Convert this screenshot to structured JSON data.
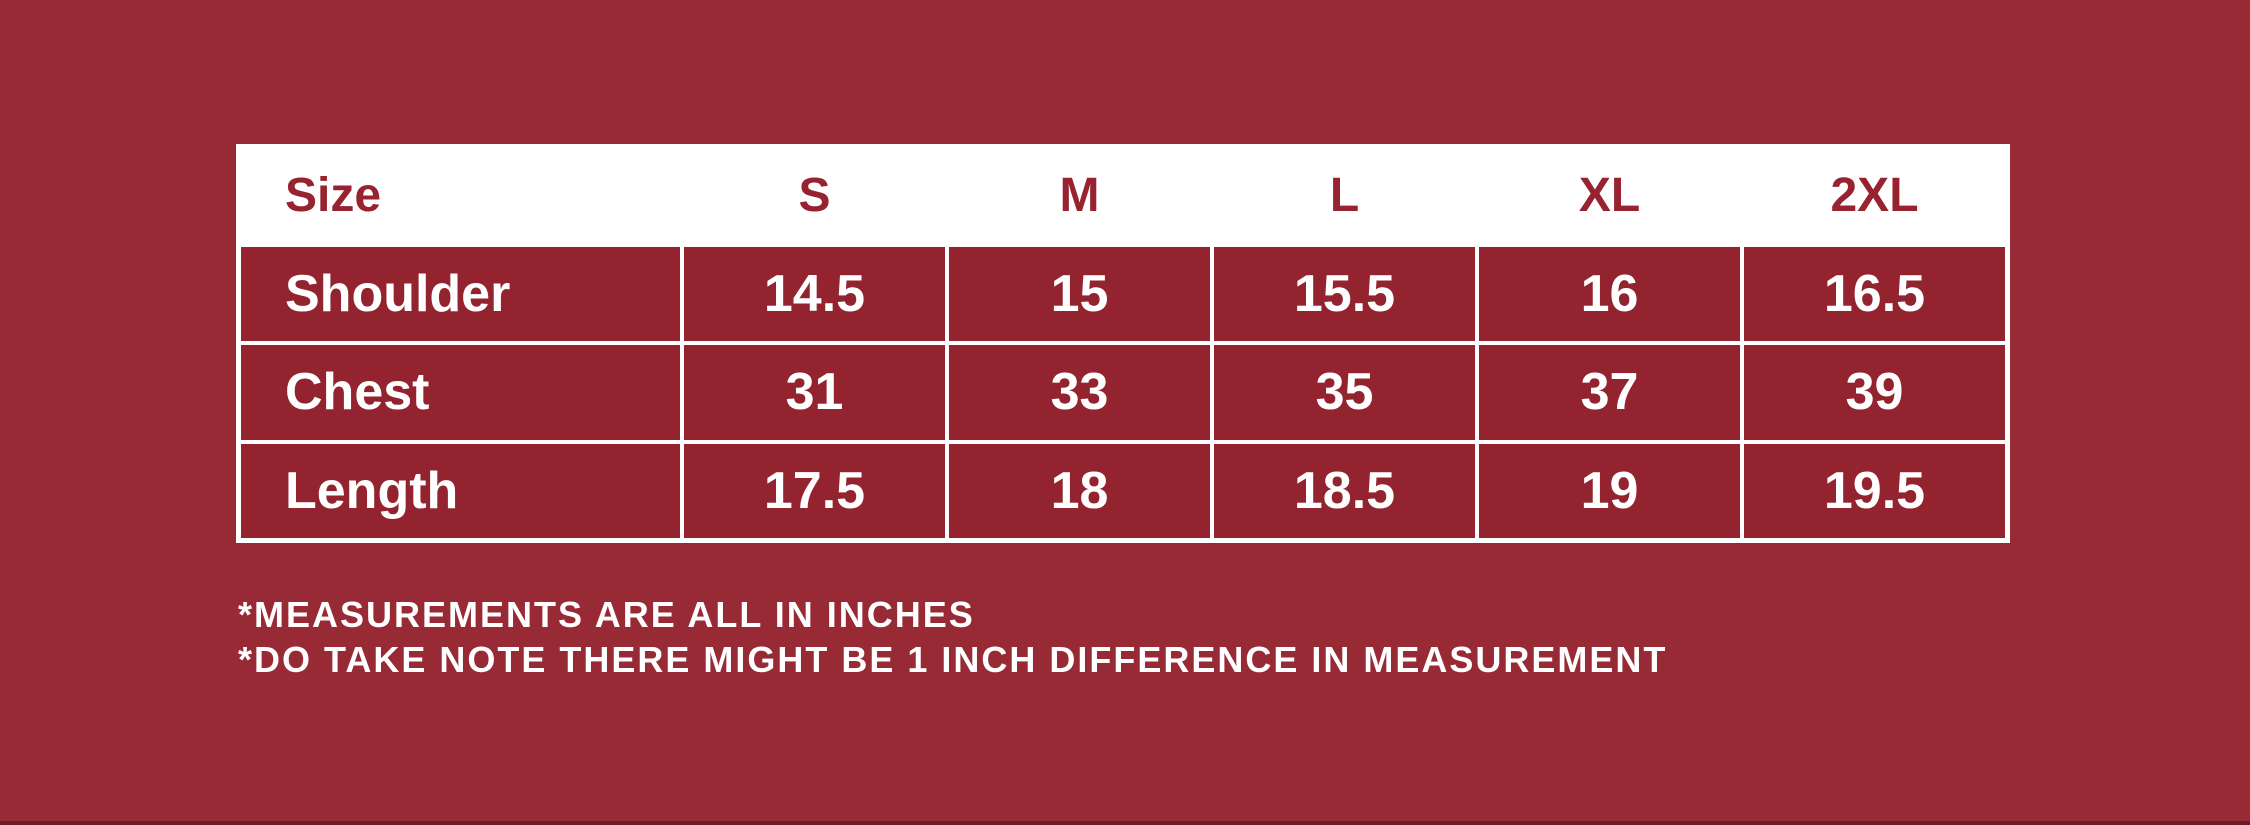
{
  "colors": {
    "background": "#982A35",
    "cell_red": "#93242F",
    "header_text_red": "#96232F",
    "value_text": "#FFFFFF",
    "note_text": "#FFFFFF",
    "table_border": "#FFFFFF",
    "bottom_edge": "#6B1C27"
  },
  "table": {
    "header": [
      "Size",
      "S",
      "M",
      "L",
      "XL",
      "2XL"
    ],
    "rows": [
      {
        "label": "Shoulder",
        "values": [
          "14.5",
          "15",
          "15.5",
          "16",
          "16.5"
        ]
      },
      {
        "label": "Chest",
        "values": [
          "31",
          "33",
          "35",
          "37",
          "39"
        ]
      },
      {
        "label": "Length",
        "values": [
          "17.5",
          "18",
          "18.5",
          "19",
          "19.5"
        ]
      }
    ]
  },
  "notes": [
    "*MEASUREMENTS ARE ALL IN INCHES",
    "*DO TAKE NOTE THERE MIGHT BE 1 INCH DIFFERENCE IN MEASUREMENT"
  ],
  "chart_data": {
    "type": "table",
    "columns": [
      "Size",
      "S",
      "M",
      "L",
      "XL",
      "2XL"
    ],
    "rows": [
      [
        "Shoulder",
        14.5,
        15,
        15.5,
        16,
        16.5
      ],
      [
        "Chest",
        31,
        33,
        35,
        37,
        39
      ],
      [
        "Length",
        17.5,
        18,
        18.5,
        19,
        19.5
      ]
    ],
    "units": "inches",
    "annotations": [
      "*MEASUREMENTS ARE ALL IN INCHES",
      "*DO TAKE NOTE THERE MIGHT BE 1 INCH DIFFERENCE IN MEASUREMENT"
    ]
  }
}
